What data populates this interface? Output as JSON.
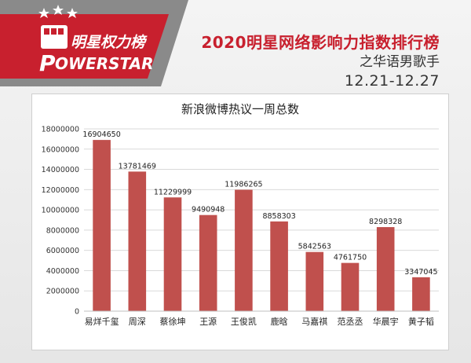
{
  "header": {
    "logo_cn": "明星权力榜",
    "logo_en": "OWERSTAR",
    "logo_p": "P",
    "title": "2020明星网络影响力指数排行榜",
    "subtitle": "之华语男歌手",
    "date_range": "12.21-12.27"
  },
  "colors": {
    "brand_red": "#c8202e",
    "bar": "#c0504d",
    "gray_band": "#8a8a8a"
  },
  "chart_data": {
    "type": "bar",
    "title": "新浪微博热议一周总数",
    "xlabel": "",
    "ylabel": "",
    "categories": [
      "易烊千玺",
      "周深",
      "蔡徐坤",
      "王源",
      "王俊凯",
      "鹿晗",
      "马嘉祺",
      "范丞丞",
      "华晨宇",
      "黄子韬"
    ],
    "values": [
      16904650,
      13781469,
      11229999,
      9490948,
      11986265,
      8858303,
      5842563,
      4761750,
      8298328,
      3347045
    ],
    "value_labels": [
      "16904650",
      "13781469",
      "11229999",
      "9490948",
      "11986265",
      "8858303",
      "5842563",
      "4761750",
      "8298328",
      "3347045"
    ],
    "ylim": [
      0,
      18000000
    ],
    "yticks": [
      0,
      2000000,
      4000000,
      6000000,
      8000000,
      10000000,
      12000000,
      14000000,
      16000000,
      18000000
    ],
    "ytick_labels": [
      "0",
      "2000000",
      "4000000",
      "6000000",
      "8000000",
      "10000000",
      "12000000",
      "14000000",
      "16000000",
      "18000000"
    ],
    "grid": true,
    "legend": "none"
  }
}
